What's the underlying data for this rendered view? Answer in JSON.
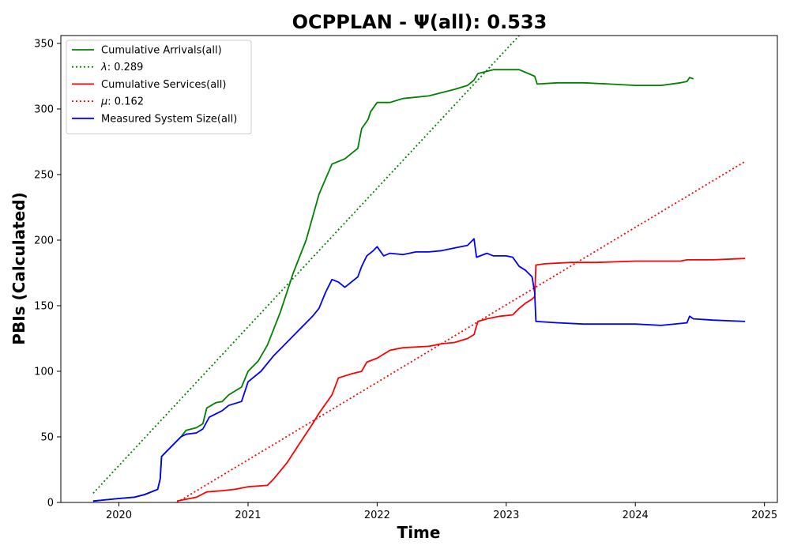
{
  "chart_data": {
    "type": "line",
    "title": "OCPPLAN -  Ψ(all): 0.533",
    "xlabel": "Time",
    "ylabel": "PBIs (Calculated)",
    "xlim": [
      2019.55,
      2025.1
    ],
    "ylim": [
      0,
      356
    ],
    "x_ticks": [
      2020,
      2021,
      2022,
      2023,
      2024,
      2025
    ],
    "x_tick_labels": [
      "2020",
      "2021",
      "2022",
      "2023",
      "2024",
      "2025"
    ],
    "y_ticks": [
      0,
      50,
      100,
      150,
      200,
      250,
      300,
      350
    ],
    "y_tick_labels": [
      "0",
      "50",
      "100",
      "150",
      "200",
      "250",
      "300",
      "350"
    ],
    "grid": false,
    "legend_position": "upper-left",
    "series": [
      {
        "name": "Cumulative Arrivals(all)",
        "color": "#008000",
        "style": "solid",
        "points": [
          [
            2019.8,
            1
          ],
          [
            2020.0,
            3
          ],
          [
            2020.12,
            4
          ],
          [
            2020.2,
            6
          ],
          [
            2020.3,
            10
          ],
          [
            2020.32,
            18
          ],
          [
            2020.33,
            35
          ],
          [
            2020.4,
            42
          ],
          [
            2020.48,
            50
          ],
          [
            2020.52,
            55
          ],
          [
            2020.6,
            57
          ],
          [
            2020.65,
            60
          ],
          [
            2020.68,
            72
          ],
          [
            2020.75,
            76
          ],
          [
            2020.8,
            77
          ],
          [
            2020.85,
            82
          ],
          [
            2020.95,
            88
          ],
          [
            2021.0,
            100
          ],
          [
            2021.08,
            108
          ],
          [
            2021.15,
            120
          ],
          [
            2021.25,
            145
          ],
          [
            2021.35,
            175
          ],
          [
            2021.45,
            200
          ],
          [
            2021.55,
            235
          ],
          [
            2021.65,
            258
          ],
          [
            2021.75,
            262
          ],
          [
            2021.85,
            270
          ],
          [
            2021.88,
            285
          ],
          [
            2021.93,
            292
          ],
          [
            2021.95,
            298
          ],
          [
            2022.0,
            305
          ],
          [
            2022.1,
            305
          ],
          [
            2022.2,
            308
          ],
          [
            2022.4,
            310
          ],
          [
            2022.6,
            315
          ],
          [
            2022.7,
            318
          ],
          [
            2022.75,
            322
          ],
          [
            2022.78,
            327
          ],
          [
            2022.9,
            330
          ],
          [
            2023.0,
            330
          ],
          [
            2023.1,
            330
          ],
          [
            2023.22,
            325
          ],
          [
            2023.24,
            319
          ],
          [
            2023.4,
            320
          ],
          [
            2023.6,
            320
          ],
          [
            2023.8,
            319
          ],
          [
            2024.0,
            318
          ],
          [
            2024.2,
            318
          ],
          [
            2024.35,
            320
          ],
          [
            2024.4,
            321
          ],
          [
            2024.42,
            324
          ],
          [
            2024.45,
            323
          ]
        ]
      },
      {
        "name": "λ: 0.289",
        "label_prefix": "λ",
        "label_value": ": 0.289",
        "color": "#008000",
        "style": "dotted",
        "points": [
          [
            2019.8,
            7
          ],
          [
            2023.1,
            356
          ]
        ]
      },
      {
        "name": "Cumulative Services(all)",
        "color": "#ff0000",
        "style": "solid",
        "points": [
          [
            2020.45,
            1
          ],
          [
            2020.55,
            3
          ],
          [
            2020.6,
            4
          ],
          [
            2020.68,
            8
          ],
          [
            2020.8,
            9
          ],
          [
            2020.9,
            10
          ],
          [
            2021.0,
            12
          ],
          [
            2021.15,
            13
          ],
          [
            2021.2,
            18
          ],
          [
            2021.3,
            30
          ],
          [
            2021.4,
            45
          ],
          [
            2021.5,
            60
          ],
          [
            2021.55,
            68
          ],
          [
            2021.65,
            82
          ],
          [
            2021.7,
            95
          ],
          [
            2021.8,
            98
          ],
          [
            2021.88,
            100
          ],
          [
            2021.92,
            107
          ],
          [
            2022.0,
            110
          ],
          [
            2022.1,
            116
          ],
          [
            2022.2,
            118
          ],
          [
            2022.4,
            119
          ],
          [
            2022.5,
            121
          ],
          [
            2022.6,
            122
          ],
          [
            2022.7,
            125
          ],
          [
            2022.75,
            128
          ],
          [
            2022.78,
            138
          ],
          [
            2022.85,
            140
          ],
          [
            2022.95,
            142
          ],
          [
            2023.05,
            143
          ],
          [
            2023.1,
            148
          ],
          [
            2023.15,
            152
          ],
          [
            2023.2,
            155
          ],
          [
            2023.22,
            157
          ],
          [
            2023.23,
            181
          ],
          [
            2023.3,
            182
          ],
          [
            2023.5,
            183
          ],
          [
            2023.7,
            183
          ],
          [
            2024.0,
            184
          ],
          [
            2024.35,
            184
          ],
          [
            2024.4,
            185
          ],
          [
            2024.6,
            185
          ],
          [
            2024.85,
            186
          ]
        ]
      },
      {
        "name": "μ: 0.162",
        "label_prefix": "μ",
        "label_value": ": 0.162",
        "color": "#ff0000",
        "style": "dotted",
        "points": [
          [
            2020.45,
            0
          ],
          [
            2024.85,
            260
          ]
        ]
      },
      {
        "name": "Measured System Size(all)",
        "color": "#0000ff",
        "style": "solid",
        "points": [
          [
            2019.8,
            1
          ],
          [
            2020.0,
            3
          ],
          [
            2020.12,
            4
          ],
          [
            2020.2,
            6
          ],
          [
            2020.3,
            10
          ],
          [
            2020.32,
            18
          ],
          [
            2020.33,
            35
          ],
          [
            2020.4,
            42
          ],
          [
            2020.48,
            50
          ],
          [
            2020.52,
            52
          ],
          [
            2020.6,
            53
          ],
          [
            2020.65,
            56
          ],
          [
            2020.7,
            65
          ],
          [
            2020.8,
            70
          ],
          [
            2020.85,
            74
          ],
          [
            2020.95,
            77
          ],
          [
            2021.0,
            92
          ],
          [
            2021.1,
            100
          ],
          [
            2021.2,
            112
          ],
          [
            2021.3,
            122
          ],
          [
            2021.4,
            132
          ],
          [
            2021.5,
            142
          ],
          [
            2021.55,
            148
          ],
          [
            2021.6,
            160
          ],
          [
            2021.65,
            170
          ],
          [
            2021.7,
            168
          ],
          [
            2021.75,
            164
          ],
          [
            2021.8,
            168
          ],
          [
            2021.85,
            172
          ],
          [
            2021.88,
            180
          ],
          [
            2021.92,
            188
          ],
          [
            2021.97,
            192
          ],
          [
            2022.0,
            195
          ],
          [
            2022.05,
            188
          ],
          [
            2022.1,
            190
          ],
          [
            2022.2,
            189
          ],
          [
            2022.3,
            191
          ],
          [
            2022.4,
            191
          ],
          [
            2022.5,
            192
          ],
          [
            2022.6,
            194
          ],
          [
            2022.7,
            196
          ],
          [
            2022.75,
            201
          ],
          [
            2022.77,
            187
          ],
          [
            2022.85,
            190
          ],
          [
            2022.9,
            188
          ],
          [
            2023.0,
            188
          ],
          [
            2023.05,
            187
          ],
          [
            2023.1,
            180
          ],
          [
            2023.15,
            177
          ],
          [
            2023.2,
            172
          ],
          [
            2023.22,
            160
          ],
          [
            2023.23,
            138
          ],
          [
            2023.4,
            137
          ],
          [
            2023.6,
            136
          ],
          [
            2023.8,
            136
          ],
          [
            2024.0,
            136
          ],
          [
            2024.2,
            135
          ],
          [
            2024.4,
            137
          ],
          [
            2024.42,
            142
          ],
          [
            2024.45,
            140
          ],
          [
            2024.6,
            139
          ],
          [
            2024.85,
            138
          ]
        ]
      }
    ]
  }
}
